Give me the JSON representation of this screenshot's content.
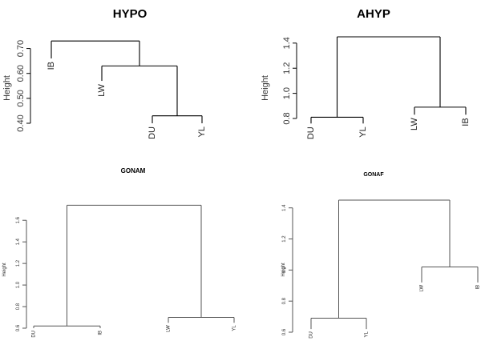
{
  "chart_data": [
    {
      "type": "dendrogram",
      "title": "HYPO",
      "ylabel": "Height",
      "ylim": [
        0.4,
        0.75
      ],
      "yticks": [
        "0.40",
        "0.50",
        "0.60",
        "0.70"
      ],
      "leaves": [
        "IB",
        "LW",
        "DU",
        "YL"
      ],
      "merges": [
        {
          "a": "DU",
          "b": "YL",
          "height": 0.43
        },
        {
          "a": "LW",
          "b": "DU+YL",
          "height": 0.63
        },
        {
          "a": "IB",
          "b": "LW+DU+YL",
          "height": 0.73
        }
      ],
      "leaf_heights": {
        "IB": 0.66,
        "LW": 0.57,
        "DU": 0.4,
        "YL": 0.4
      }
    },
    {
      "type": "dendrogram",
      "title": "AHYP",
      "ylabel": "Height",
      "ylim": [
        0.8,
        1.45
      ],
      "yticks": [
        "0.8",
        "1.0",
        "1.2",
        "1.4"
      ],
      "leaves": [
        "DU",
        "YL",
        "LW",
        "IB"
      ],
      "merges": [
        {
          "a": "DU",
          "b": "YL",
          "height": 0.81
        },
        {
          "a": "LW",
          "b": "IB",
          "height": 0.89
        },
        {
          "a": "DU+YL",
          "b": "LW+IB",
          "height": 1.45
        }
      ],
      "leaf_heights": {
        "DU": 0.76,
        "YL": 0.76,
        "LW": 0.83,
        "IB": 0.83
      }
    },
    {
      "type": "dendrogram",
      "title": "GONAM",
      "ylabel": "Height",
      "ylim": [
        0.6,
        1.75
      ],
      "yticks": [
        "0.6",
        "0.8",
        "1.0",
        "1.2",
        "1.4",
        "1.6"
      ],
      "leaves": [
        "DU",
        "IB",
        "LW",
        "YL"
      ],
      "merges": [
        {
          "a": "DU",
          "b": "IB",
          "height": 0.62
        },
        {
          "a": "LW",
          "b": "YL",
          "height": 0.7
        },
        {
          "a": "DU+IB",
          "b": "LW+YL",
          "height": 1.74
        }
      ],
      "leaf_heights": {
        "DU": 0.6,
        "IB": 0.6,
        "LW": 0.65,
        "YL": 0.65
      }
    },
    {
      "type": "dendrogram",
      "title": "GONAF",
      "ylabel": "Height",
      "ylim": [
        0.6,
        1.45
      ],
      "yticks": [
        "0.6",
        "0.8",
        "1.0",
        "1.2",
        "1.4"
      ],
      "leaves": [
        "DU",
        "YL",
        "LW",
        "IB"
      ],
      "merges": [
        {
          "a": "DU",
          "b": "YL",
          "height": 0.69
        },
        {
          "a": "LW",
          "b": "IB",
          "height": 1.02
        },
        {
          "a": "DU+YL",
          "b": "LW+IB",
          "height": 1.45
        }
      ],
      "leaf_heights": {
        "DU": 0.62,
        "YL": 0.62,
        "LW": 0.92,
        "IB": 0.92
      }
    }
  ]
}
